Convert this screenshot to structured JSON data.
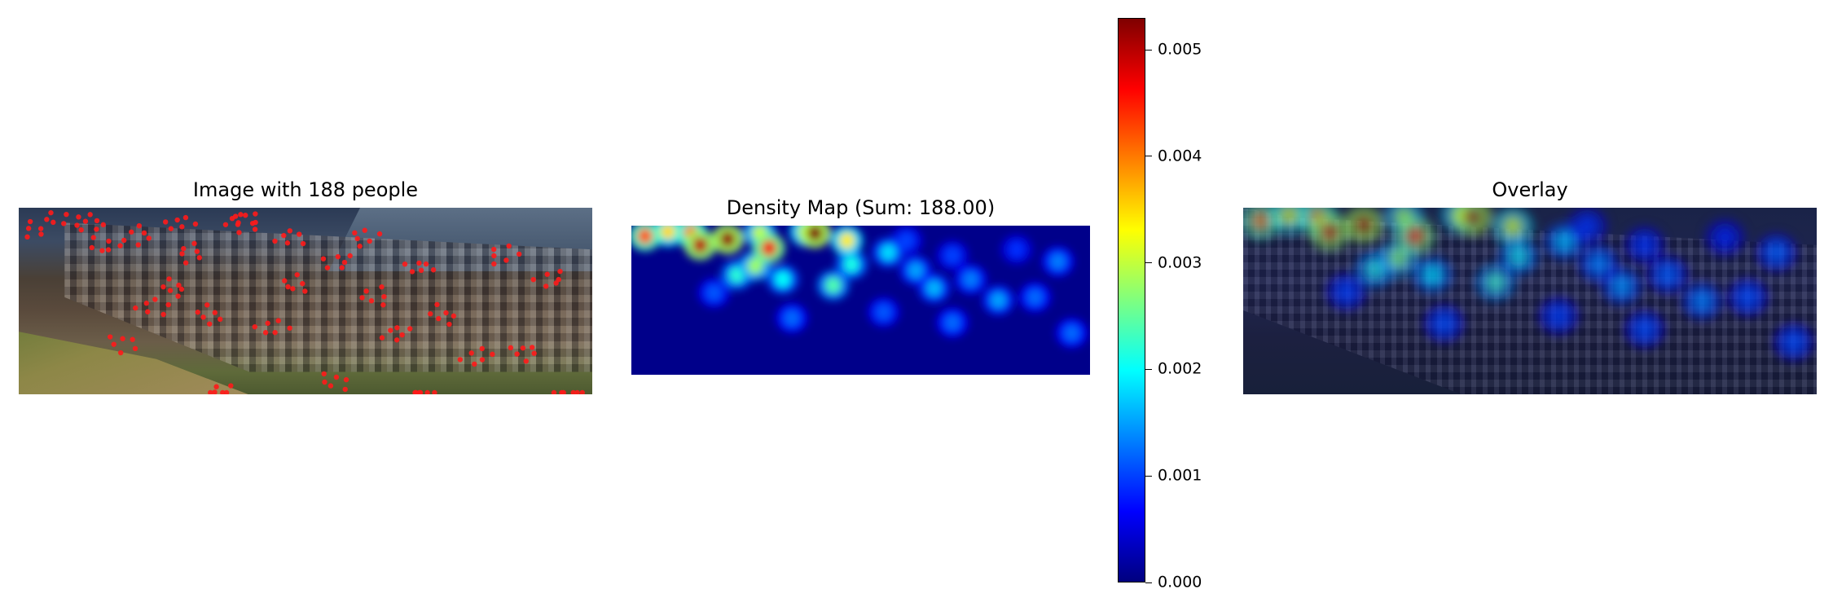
{
  "panels": {
    "left_title": "Image with 188 people",
    "middle_title": "Density Map (Sum: 188.00)",
    "right_title": "Overlay"
  },
  "chart_data": {
    "type": "heatmap",
    "title": "Density Map (Sum: 188.00)",
    "people_count": 188,
    "density_sum": 188.0,
    "colormap": "jet",
    "colorbar": {
      "min": 0.0,
      "max": 0.0053,
      "ticks": [
        0.0,
        0.001,
        0.002,
        0.003,
        0.004,
        0.005
      ],
      "tick_labels": [
        "0.000",
        "0.001",
        "0.002",
        "0.003",
        "0.004",
        "0.005"
      ]
    },
    "hotspots": [
      {
        "x": 0.03,
        "y": 0.07,
        "value": 0.0042
      },
      {
        "x": 0.08,
        "y": 0.04,
        "value": 0.0035
      },
      {
        "x": 0.13,
        "y": 0.05,
        "value": 0.004
      },
      {
        "x": 0.15,
        "y": 0.13,
        "value": 0.005
      },
      {
        "x": 0.21,
        "y": 0.09,
        "value": 0.0052
      },
      {
        "x": 0.28,
        "y": 0.05,
        "value": 0.003
      },
      {
        "x": 0.3,
        "y": 0.15,
        "value": 0.0047
      },
      {
        "x": 0.38,
        "y": 0.04,
        "value": 0.0032
      },
      {
        "x": 0.4,
        "y": 0.05,
        "value": 0.0053
      },
      {
        "x": 0.47,
        "y": 0.1,
        "value": 0.0034
      },
      {
        "x": 0.27,
        "y": 0.27,
        "value": 0.0028
      },
      {
        "x": 0.23,
        "y": 0.33,
        "value": 0.0022
      },
      {
        "x": 0.33,
        "y": 0.36,
        "value": 0.002
      },
      {
        "x": 0.44,
        "y": 0.4,
        "value": 0.0024
      },
      {
        "x": 0.48,
        "y": 0.26,
        "value": 0.0021
      },
      {
        "x": 0.56,
        "y": 0.18,
        "value": 0.0018
      },
      {
        "x": 0.62,
        "y": 0.3,
        "value": 0.0015
      },
      {
        "x": 0.66,
        "y": 0.42,
        "value": 0.0016
      },
      {
        "x": 0.74,
        "y": 0.36,
        "value": 0.0013
      },
      {
        "x": 0.8,
        "y": 0.5,
        "value": 0.0015
      },
      {
        "x": 0.88,
        "y": 0.48,
        "value": 0.0012
      },
      {
        "x": 0.93,
        "y": 0.24,
        "value": 0.0013
      },
      {
        "x": 0.18,
        "y": 0.45,
        "value": 0.0011
      },
      {
        "x": 0.35,
        "y": 0.62,
        "value": 0.0012
      },
      {
        "x": 0.55,
        "y": 0.58,
        "value": 0.0011
      },
      {
        "x": 0.7,
        "y": 0.65,
        "value": 0.0012
      },
      {
        "x": 0.96,
        "y": 0.72,
        "value": 0.0012
      },
      {
        "x": 0.6,
        "y": 0.1,
        "value": 0.001
      },
      {
        "x": 0.7,
        "y": 0.2,
        "value": 0.001
      },
      {
        "x": 0.84,
        "y": 0.16,
        "value": 0.0009
      }
    ]
  }
}
